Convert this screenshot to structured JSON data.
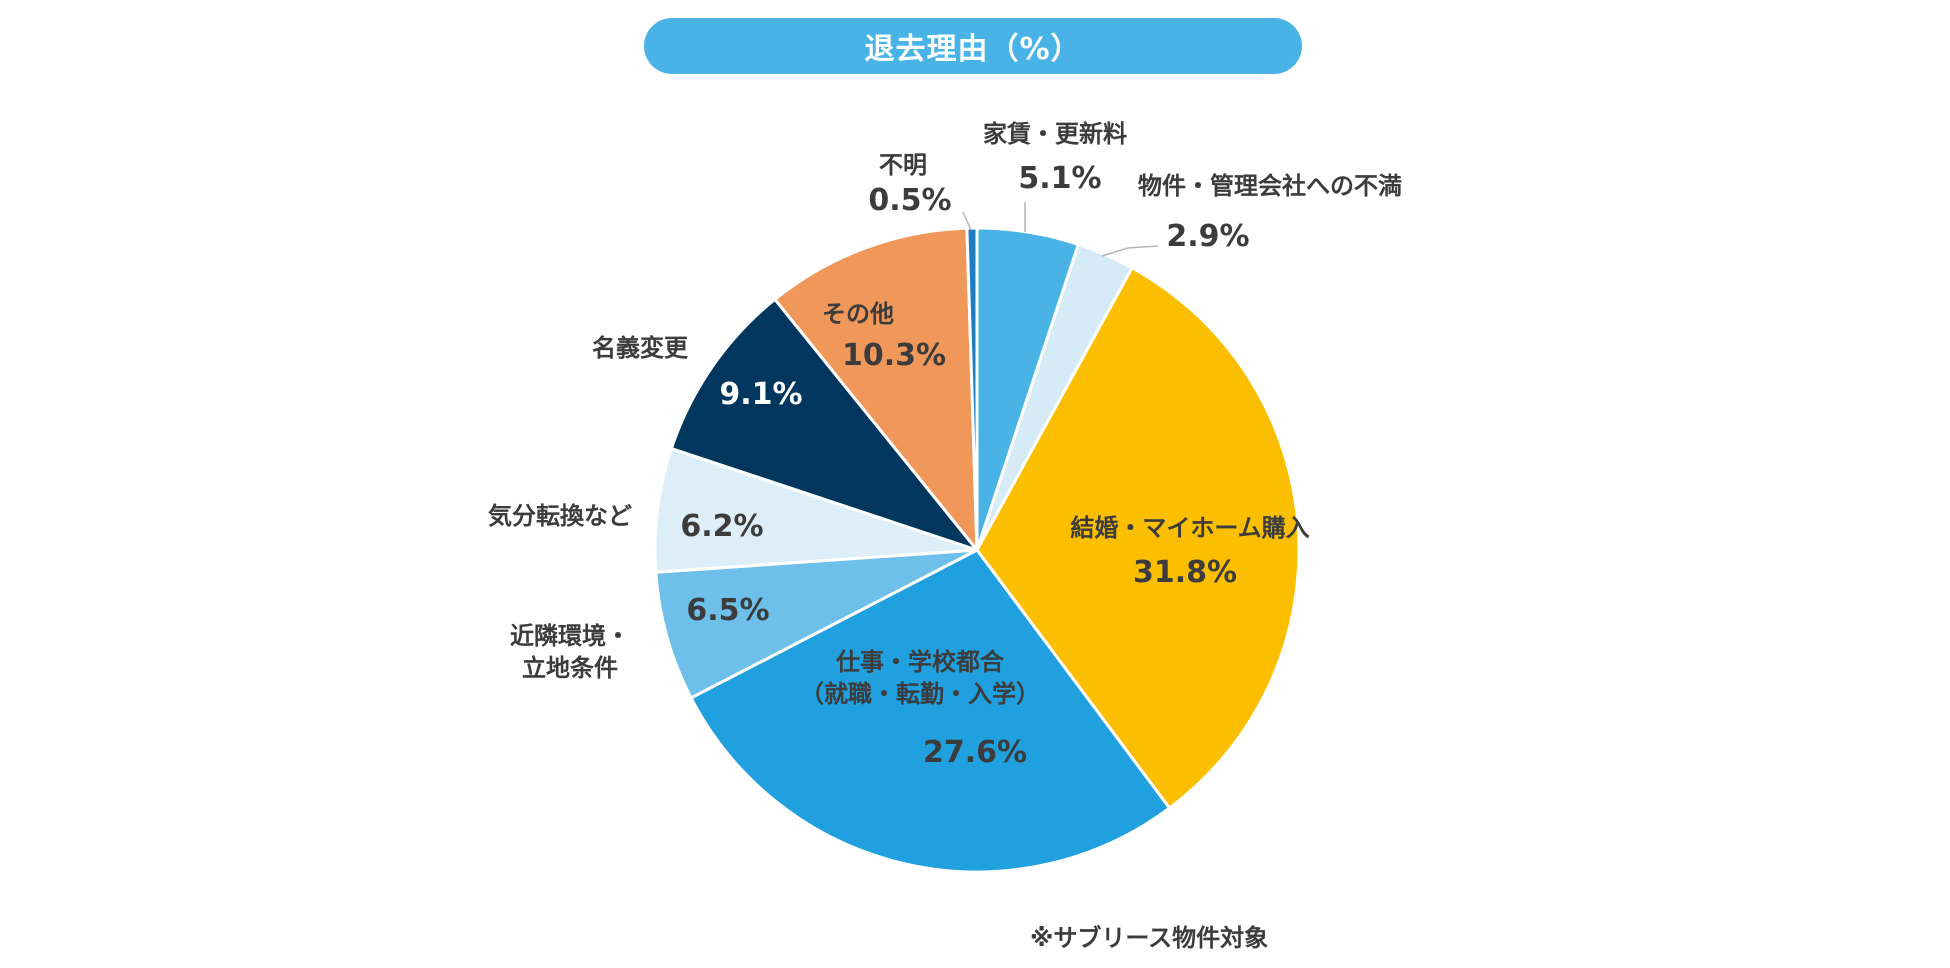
{
  "chart_data": {
    "type": "pie",
    "title": "退去理由（%）",
    "footnote": "※サブリース物件対象",
    "slices": [
      {
        "label": "家賃・更新料",
        "label_lines": [
          "家賃・更新料"
        ],
        "value": 5.1,
        "value_text": "5.1%",
        "color": "#49b3e6"
      },
      {
        "label": "物件・管理会社への不満",
        "label_lines": [
          "物件・管理会社への不満"
        ],
        "value": 2.9,
        "value_text": "2.9%",
        "color": "#d6ebf7"
      },
      {
        "label": "結婚・マイホーム購入",
        "label_lines": [
          "結婚・マイホーム購入"
        ],
        "value": 31.8,
        "value_text": "31.8%",
        "color": "#fbbf00"
      },
      {
        "label": "仕事・学校都合（就職・転勤・入学）",
        "label_lines": [
          "仕事・学校都合",
          "（就職・転勤・入学）"
        ],
        "value": 27.6,
        "value_text": "27.6%",
        "color": "#20a0df"
      },
      {
        "label": "近隣環境・立地条件",
        "label_lines": [
          "近隣環境・",
          "立地条件"
        ],
        "value": 6.5,
        "value_text": "6.5%",
        "color": "#6ec0ea"
      },
      {
        "label": "気分転換など",
        "label_lines": [
          "気分転換など"
        ],
        "value": 6.2,
        "value_text": "6.2%",
        "color": "#ddeef9"
      },
      {
        "label": "名義変更",
        "label_lines": [
          "名義変更"
        ],
        "value": 9.1,
        "value_text": "9.1%",
        "color": "#01365e"
      },
      {
        "label": "その他",
        "label_lines": [
          "その他"
        ],
        "value": 10.3,
        "value_text": "10.3%",
        "color": "#f0975a"
      },
      {
        "label": "不明",
        "label_lines": [
          "不明"
        ],
        "value": 0.5,
        "value_text": "0.5%",
        "color": "#1f7cc0"
      }
    ]
  }
}
